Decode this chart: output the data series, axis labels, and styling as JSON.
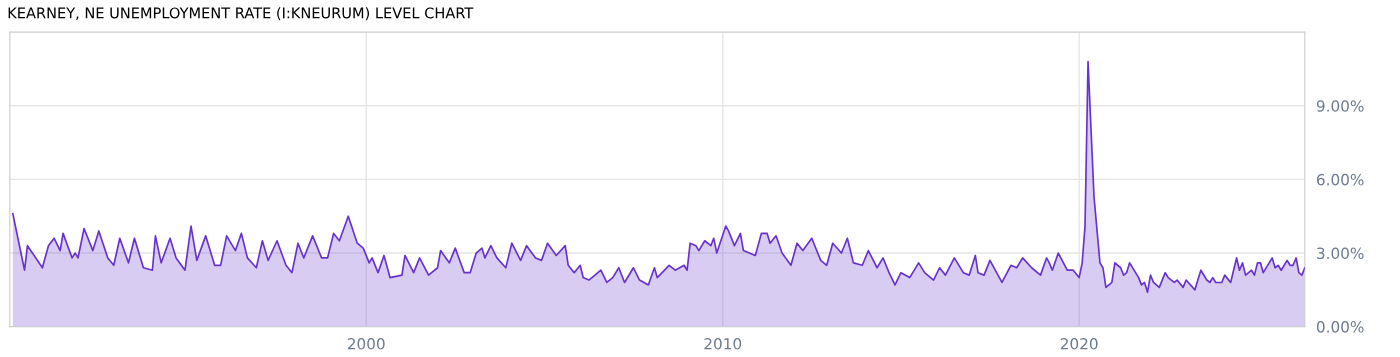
{
  "chart_data": {
    "type": "area",
    "title": "KEARNEY, NE UNEMPLOYMENT RATE (I:KNEURUM) LEVEL CHART",
    "x": [
      "1990-02",
      "1990-06",
      "1990-07",
      "1990-12",
      "1991-02",
      "1991-04",
      "1991-06",
      "1991-07",
      "1991-10",
      "1991-11",
      "1991-12",
      "1992-02",
      "1992-05",
      "1992-07",
      "1992-10",
      "1992-12",
      "1993-02",
      "1993-05",
      "1993-07",
      "1993-10",
      "1994-01",
      "1994-02",
      "1994-04",
      "1994-07",
      "1994-09",
      "1994-12",
      "1995-02",
      "1995-04",
      "1995-07",
      "1995-10",
      "1995-12",
      "1996-02",
      "1996-05",
      "1996-07",
      "1996-09",
      "1996-12",
      "1997-02",
      "1997-04",
      "1997-07",
      "1997-10",
      "1997-12",
      "1998-02",
      "1998-04",
      "1998-07",
      "1998-10",
      "1998-12",
      "1999-02",
      "1999-04",
      "1999-07",
      "1999-10",
      "1999-12",
      "2000-02",
      "2000-03",
      "2000-05",
      "2000-07",
      "2000-09",
      "2001-01",
      "2001-02",
      "2001-05",
      "2001-07",
      "2001-10",
      "2002-01",
      "2002-02",
      "2002-05",
      "2002-07",
      "2002-10",
      "2002-12",
      "2003-02",
      "2003-04",
      "2003-05",
      "2003-07",
      "2003-09",
      "2003-12",
      "2004-02",
      "2004-05",
      "2004-07",
      "2004-10",
      "2004-12",
      "2005-02",
      "2005-05",
      "2005-08",
      "2005-09",
      "2005-11",
      "2006-01",
      "2006-02",
      "2006-04",
      "2006-08",
      "2006-10",
      "2006-12",
      "2007-02",
      "2007-04",
      "2007-07",
      "2007-09",
      "2007-12",
      "2008-02",
      "2008-03",
      "2008-07",
      "2008-09",
      "2008-12",
      "2009-01",
      "2009-02",
      "2009-04",
      "2009-05",
      "2009-07",
      "2009-09",
      "2009-10",
      "2009-11",
      "2010-02",
      "2010-03",
      "2010-05",
      "2010-07",
      "2010-08",
      "2010-12",
      "2011-02",
      "2011-04",
      "2011-05",
      "2011-07",
      "2011-09",
      "2011-12",
      "2012-02",
      "2012-04",
      "2012-07",
      "2012-10",
      "2012-12",
      "2013-02",
      "2013-05",
      "2013-07",
      "2013-09",
      "2013-12",
      "2014-02",
      "2014-05",
      "2014-07",
      "2014-09",
      "2014-11",
      "2015-01",
      "2015-04",
      "2015-07",
      "2015-09",
      "2015-12",
      "2016-02",
      "2016-04",
      "2016-07",
      "2016-10",
      "2016-12",
      "2017-02",
      "2017-03",
      "2017-05",
      "2017-07",
      "2017-11",
      "2018-02",
      "2018-04",
      "2018-06",
      "2018-09",
      "2018-12",
      "2019-02",
      "2019-03",
      "2019-04",
      "2019-06",
      "2019-09",
      "2019-11",
      "2020-01",
      "2020-02",
      "2020-03",
      "2020-04",
      "2020-06",
      "2020-08",
      "2020-09",
      "2020-10",
      "2020-12",
      "2021-01",
      "2021-03",
      "2021-04",
      "2021-05",
      "2021-06",
      "2021-08",
      "2021-09",
      "2021-10",
      "2021-11",
      "2021-12",
      "2022-01",
      "2022-02",
      "2022-04",
      "2022-06",
      "2022-07",
      "2022-09",
      "2022-10",
      "2022-12",
      "2023-01",
      "2023-04",
      "2023-06",
      "2023-08",
      "2023-09",
      "2023-10",
      "2023-11",
      "2024-01",
      "2024-02",
      "2024-04",
      "2024-06",
      "2024-07",
      "2024-08",
      "2024-09",
      "2024-11",
      "2024-12",
      "2025-01",
      "2025-02",
      "2025-03",
      "2025-06",
      "2025-07",
      "2025-08",
      "2025-09",
      "2025-11",
      "2025-12",
      "2026-01",
      "2026-02",
      "2026-03",
      "2026-04",
      "2026-05"
    ],
    "series": [
      {
        "color": "#6633cc",
        "values": [
          4.6,
          2.3,
          3.3,
          2.4,
          3.3,
          3.6,
          3.1,
          3.8,
          2.8,
          3.0,
          2.8,
          4.0,
          3.1,
          3.9,
          2.8,
          2.5,
          3.6,
          2.6,
          3.6,
          2.4,
          2.3,
          3.7,
          2.6,
          3.6,
          2.8,
          2.3,
          4.1,
          2.7,
          3.7,
          2.5,
          2.5,
          3.7,
          3.1,
          3.8,
          2.8,
          2.4,
          3.5,
          2.7,
          3.5,
          2.5,
          2.2,
          3.4,
          2.8,
          3.7,
          2.8,
          2.8,
          3.8,
          3.5,
          4.5,
          3.4,
          3.2,
          2.6,
          2.8,
          2.2,
          2.9,
          2.0,
          2.1,
          2.9,
          2.2,
          2.8,
          2.1,
          2.4,
          3.1,
          2.6,
          3.2,
          2.2,
          2.2,
          3.0,
          3.2,
          2.8,
          3.3,
          2.8,
          2.4,
          3.4,
          2.7,
          3.3,
          2.8,
          2.7,
          3.4,
          2.9,
          3.3,
          2.5,
          2.2,
          2.5,
          2.0,
          1.9,
          2.3,
          1.8,
          2.0,
          2.4,
          1.8,
          2.4,
          1.9,
          1.7,
          2.4,
          2.0,
          2.5,
          2.3,
          2.5,
          2.3,
          3.4,
          3.3,
          3.1,
          3.5,
          3.3,
          3.6,
          3.0,
          4.1,
          3.9,
          3.3,
          3.8,
          3.1,
          2.9,
          3.8,
          3.8,
          3.4,
          3.7,
          3.0,
          2.5,
          3.4,
          3.1,
          3.6,
          2.7,
          2.5,
          3.4,
          3.0,
          3.6,
          2.6,
          2.5,
          3.1,
          2.4,
          2.8,
          2.2,
          1.7,
          2.2,
          2.0,
          2.6,
          2.2,
          1.9,
          2.4,
          2.1,
          2.8,
          2.2,
          2.1,
          2.9,
          2.2,
          2.1,
          2.7,
          1.8,
          2.5,
          2.4,
          2.8,
          2.4,
          2.1,
          2.8,
          2.6,
          2.3,
          3.0,
          2.3,
          2.3,
          2.0,
          2.6,
          4.1,
          10.8,
          5.3,
          2.6,
          2.4,
          1.6,
          1.8,
          2.6,
          2.4,
          2.1,
          2.2,
          2.6,
          2.2,
          2.0,
          1.7,
          1.8,
          1.4,
          2.1,
          1.8,
          1.6,
          2.2,
          2.0,
          1.8,
          1.9,
          1.6,
          1.9,
          1.5,
          2.3,
          1.9,
          1.8,
          2.0,
          1.8,
          1.8,
          2.1,
          1.8,
          2.8,
          2.3,
          2.6,
          2.1,
          2.3,
          2.1,
          2.6,
          2.6,
          2.2,
          2.8,
          2.4,
          2.5,
          2.3,
          2.7,
          2.5,
          2.5,
          2.8,
          2.2,
          2.1,
          2.4
        ]
      }
    ],
    "xlim": [
      "1990-01",
      "2026-05"
    ],
    "xticks": [
      "2000",
      "2010",
      "2020"
    ],
    "ylim": [
      0,
      12
    ],
    "yticks": [
      {
        "value": 0,
        "label": "0.00%"
      },
      {
        "value": 3,
        "label": "3.00%"
      },
      {
        "value": 6,
        "label": "6.00%"
      },
      {
        "value": 9,
        "label": "9.00%"
      }
    ],
    "grid": true,
    "legend": false,
    "marker": "none",
    "line_style": "solid"
  }
}
